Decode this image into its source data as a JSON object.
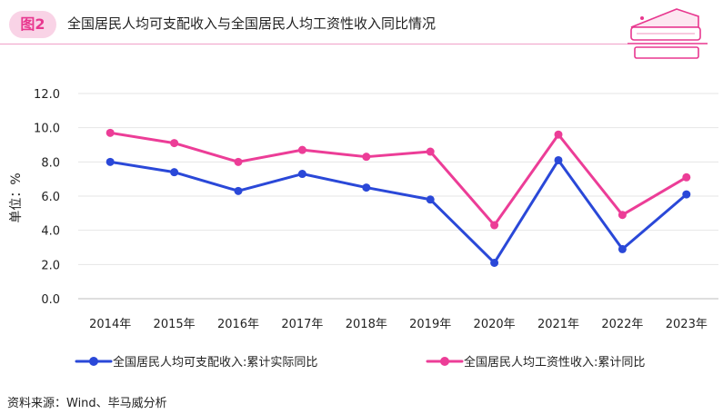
{
  "figure": {
    "badge": "图2",
    "title": "全国居民人均可支配收入与全国居民人均工资性收入同比情况"
  },
  "source": "资料来源：Wind、毕马威分析",
  "chart_data": {
    "type": "line",
    "title": "全国居民人均可支配收入与全国居民人均工资性收入同比情况",
    "xlabel": "",
    "ylabel": "单位：%",
    "ylim": [
      0,
      12
    ],
    "yticks": [
      "0.0",
      "2.0",
      "4.0",
      "6.0",
      "8.0",
      "10.0",
      "12.0"
    ],
    "categories": [
      "2014年",
      "2015年",
      "2016年",
      "2017年",
      "2018年",
      "2019年",
      "2020年",
      "2021年",
      "2022年",
      "2023年"
    ],
    "series": [
      {
        "name": "全国居民人均可支配收入:累计实际同比",
        "color": "#2a48d8",
        "values": [
          8.0,
          7.4,
          6.3,
          7.3,
          6.5,
          5.8,
          2.1,
          8.1,
          2.9,
          6.1
        ]
      },
      {
        "name": "全国居民人均工资性收入:累计同比",
        "color": "#ec3d97",
        "values": [
          9.7,
          9.1,
          8.0,
          8.7,
          8.3,
          8.6,
          4.3,
          9.6,
          4.9,
          7.1
        ]
      }
    ],
    "legend_position": "bottom",
    "grid": true
  }
}
